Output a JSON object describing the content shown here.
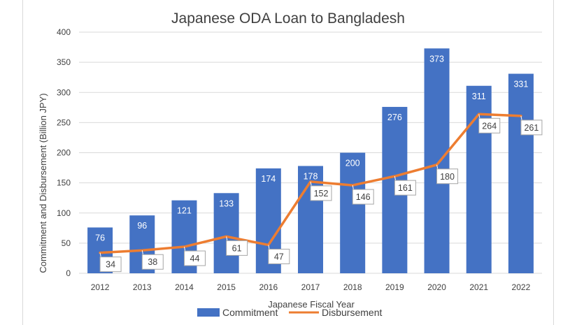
{
  "chart_data": {
    "type": "bar",
    "title": "Japanese ODA Loan to Bangladesh",
    "xlabel": "Japanese Fiscal Year",
    "ylabel": "Commitment and Disbursement (Billion JPY)",
    "ylim": [
      0,
      400
    ],
    "yticks": [
      0,
      50,
      100,
      150,
      200,
      250,
      300,
      350,
      400
    ],
    "grid": true,
    "legend_position": "bottom",
    "categories": [
      "2012",
      "2013",
      "2014",
      "2015",
      "2016",
      "2017",
      "2018",
      "2019",
      "2020",
      "2021",
      "2022"
    ],
    "series": [
      {
        "name": "Commitment",
        "type": "bar",
        "color": "#4472c4",
        "values": [
          76,
          96,
          121,
          133,
          174,
          178,
          200,
          276,
          373,
          311,
          331
        ]
      },
      {
        "name": "Disbursement",
        "type": "line",
        "color": "#ed7d31",
        "values": [
          34,
          38,
          44,
          61,
          47,
          152,
          146,
          161,
          180,
          264,
          261
        ]
      }
    ]
  }
}
